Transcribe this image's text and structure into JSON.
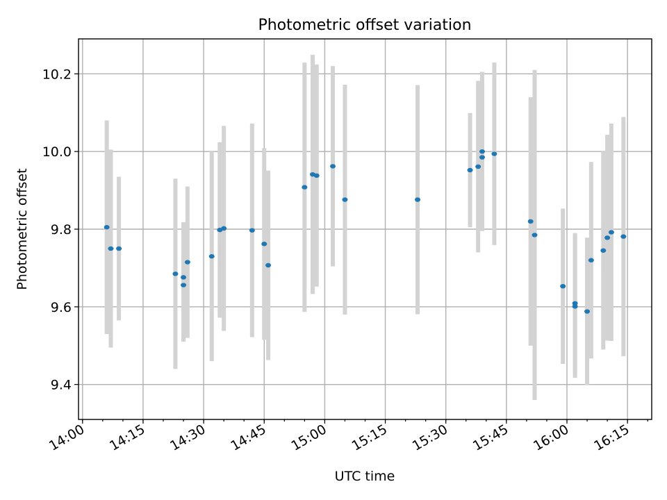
{
  "chart_data": {
    "type": "scatter",
    "title": "Photometric offset variation",
    "xlabel": "UTC time",
    "ylabel": "Photometric offset",
    "xlim": [
      "13:59",
      "16:21"
    ],
    "ylim": [
      9.31,
      10.29
    ],
    "grid": true,
    "x_ticks": [
      "14:00",
      "14:15",
      "14:30",
      "14:45",
      "15:00",
      "15:15",
      "15:30",
      "15:45",
      "16:00",
      "16:15"
    ],
    "y_ticks": [
      "9.4",
      "9.6",
      "9.8",
      "10.0",
      "10.2"
    ],
    "series": [
      {
        "marker_color": "#1f77b4",
        "errorbar_color": "#d3d3d3",
        "points": [
          {
            "x": "14:06",
            "y": 9.805,
            "lo": 9.53,
            "hi": 10.08
          },
          {
            "x": "14:07",
            "y": 9.75,
            "lo": 9.495,
            "hi": 10.005
          },
          {
            "x": "14:09",
            "y": 9.75,
            "lo": 9.565,
            "hi": 9.935
          },
          {
            "x": "14:23",
            "y": 9.685,
            "lo": 9.44,
            "hi": 9.93
          },
          {
            "x": "14:25",
            "y": 9.656,
            "lo": 9.51,
            "hi": 9.8
          },
          {
            "x": "14:25",
            "y": 9.676,
            "lo": 9.535,
            "hi": 9.818
          },
          {
            "x": "14:26",
            "y": 9.715,
            "lo": 9.52,
            "hi": 9.91
          },
          {
            "x": "14:32",
            "y": 9.73,
            "lo": 9.46,
            "hi": 10.0
          },
          {
            "x": "14:34",
            "y": 9.798,
            "lo": 9.572,
            "hi": 10.024
          },
          {
            "x": "14:35",
            "y": 9.802,
            "lo": 9.538,
            "hi": 10.066
          },
          {
            "x": "14:42",
            "y": 9.797,
            "lo": 9.522,
            "hi": 10.072
          },
          {
            "x": "14:45",
            "y": 9.762,
            "lo": 9.515,
            "hi": 10.009
          },
          {
            "x": "14:46",
            "y": 9.707,
            "lo": 9.463,
            "hi": 9.951
          },
          {
            "x": "14:55",
            "y": 9.908,
            "lo": 9.587,
            "hi": 10.229
          },
          {
            "x": "14:57",
            "y": 9.941,
            "lo": 9.633,
            "hi": 10.249
          },
          {
            "x": "14:58",
            "y": 9.938,
            "lo": 9.652,
            "hi": 10.224
          },
          {
            "x": "15:02",
            "y": 9.962,
            "lo": 9.704,
            "hi": 10.22
          },
          {
            "x": "15:05",
            "y": 9.876,
            "lo": 9.58,
            "hi": 10.172
          },
          {
            "x": "15:23",
            "y": 9.876,
            "lo": 9.581,
            "hi": 10.171
          },
          {
            "x": "15:36",
            "y": 9.952,
            "lo": 9.805,
            "hi": 10.099
          },
          {
            "x": "15:38",
            "y": 9.961,
            "lo": 9.74,
            "hi": 10.182
          },
          {
            "x": "15:39",
            "y": 9.985,
            "lo": 9.802,
            "hi": 10.168
          },
          {
            "x": "15:39",
            "y": 10.0,
            "lo": 9.795,
            "hi": 10.205
          },
          {
            "x": "15:42",
            "y": 9.994,
            "lo": 9.759,
            "hi": 10.229
          },
          {
            "x": "15:51",
            "y": 9.82,
            "lo": 9.5,
            "hi": 10.14
          },
          {
            "x": "15:52",
            "y": 9.785,
            "lo": 9.36,
            "hi": 10.21
          },
          {
            "x": "15:59",
            "y": 9.653,
            "lo": 9.453,
            "hi": 9.853
          },
          {
            "x": "16:02",
            "y": 9.609,
            "lo": 9.428,
            "hi": 9.79
          },
          {
            "x": "16:02",
            "y": 9.601,
            "lo": 9.417,
            "hi": 9.785
          },
          {
            "x": "16:05",
            "y": 9.588,
            "lo": 9.398,
            "hi": 9.778
          },
          {
            "x": "16:06",
            "y": 9.72,
            "lo": 9.467,
            "hi": 9.973
          },
          {
            "x": "16:09",
            "y": 9.745,
            "lo": 9.49,
            "hi": 10.0
          },
          {
            "x": "16:10",
            "y": 9.778,
            "lo": 9.513,
            "hi": 10.043
          },
          {
            "x": "16:11",
            "y": 9.792,
            "lo": 9.512,
            "hi": 10.072
          },
          {
            "x": "16:14",
            "y": 9.781,
            "lo": 9.473,
            "hi": 10.089
          }
        ]
      }
    ]
  }
}
